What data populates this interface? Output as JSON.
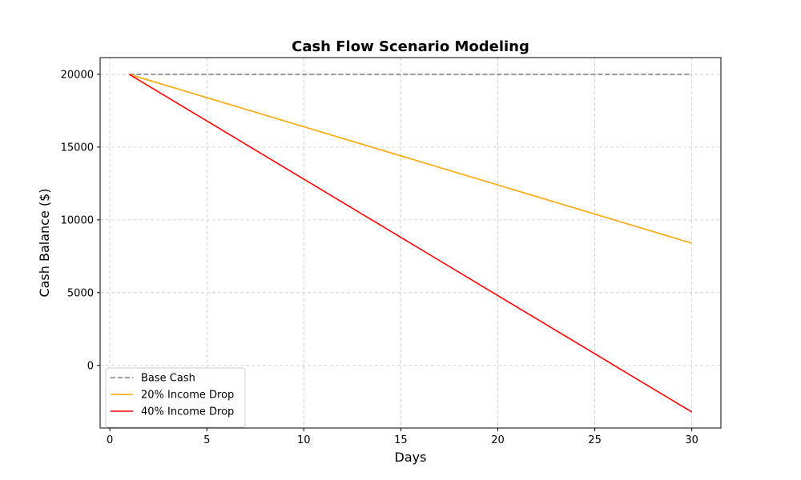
{
  "chart_data": {
    "type": "line",
    "title": "Cash Flow Scenario Modeling",
    "xlabel": "Days",
    "ylabel": "Cash Balance ($)",
    "xlim": [
      -0.5,
      31.5
    ],
    "ylim": [
      -4300,
      21150
    ],
    "xticks": [
      0,
      5,
      10,
      15,
      20,
      25,
      30
    ],
    "yticks": [
      0,
      5000,
      10000,
      15000,
      20000
    ],
    "grid": true,
    "legend_position": "lower-left",
    "series": [
      {
        "name": "Base Cash",
        "color": "#808080",
        "style": "dashed",
        "x": [
          1,
          30
        ],
        "y": [
          20000,
          20000
        ]
      },
      {
        "name": "20% Income Drop",
        "color": "#ffa500",
        "style": "solid",
        "x": [
          1,
          30
        ],
        "y": [
          20000,
          8400
        ]
      },
      {
        "name": "40% Income Drop",
        "color": "#ff0000",
        "style": "solid",
        "x": [
          1,
          30
        ],
        "y": [
          20000,
          -3200
        ]
      }
    ]
  }
}
